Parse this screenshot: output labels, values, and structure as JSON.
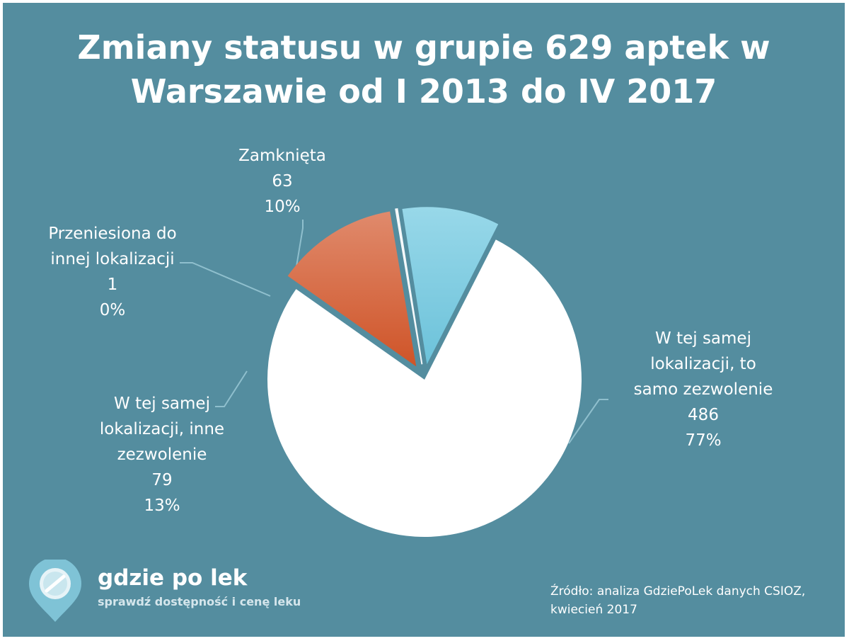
{
  "chart_data": {
    "type": "pie",
    "title": "Zmiany statusu w grupie 629 aptek w Warszawie od I 2013 do IV 2017",
    "title_lines": [
      "Zmiany statusu w grupie 629 aptek w",
      "Warszawie od I 2013 do IV 2017"
    ],
    "slices": [
      {
        "label": "W tej samej lokalizacji, to samo zezwolenie",
        "label_lines": [
          "W tej samej",
          "lokalizacji, to",
          "samo zezwolenie"
        ],
        "value": 486,
        "percent": "77%",
        "color": "#ffffff",
        "exploded": false
      },
      {
        "label": "W tej samej lokalizacji, inne zezwolenie",
        "label_lines": [
          "W tej samej",
          "lokalizacji, inne",
          "zezwolenie"
        ],
        "value": 79,
        "percent": "13%",
        "color": "#d45f30",
        "exploded": true
      },
      {
        "label": "Przeniesiona do innej lokalizacji",
        "label_lines": [
          "Przeniesiona do",
          "innej lokalizacji"
        ],
        "value": 1,
        "percent": "0%",
        "color": "#e8eef0",
        "exploded": true
      },
      {
        "label": "Zamknięta",
        "label_lines": [
          "Zamknięta"
        ],
        "value": 63,
        "percent": "10%",
        "color": "#72c5dc",
        "exploded": true
      }
    ],
    "total": 629,
    "background_color": "#548d9f"
  },
  "branding": {
    "name": "gdzie po lek",
    "tagline": "sprawdź dostępność i cenę leku"
  },
  "source": {
    "lines": [
      "Źródło: analiza GdziePoLek danych CSIOZ,",
      "kwiecień 2017"
    ]
  }
}
